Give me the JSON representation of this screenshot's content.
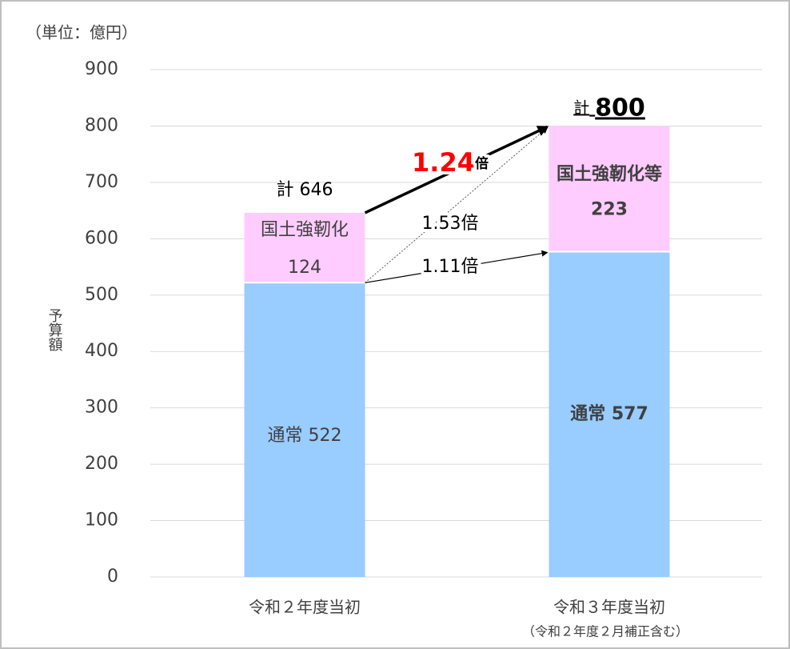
{
  "chart_data": {
    "type": "stacked_bar",
    "unit_label": "（単位：億円）",
    "ylabel": "予算額",
    "categories": [
      "令和２年度当初",
      "令和３年度当初"
    ],
    "category_notes": [
      null,
      "（令和２年度２月補正含む）"
    ],
    "series": [
      {
        "color": "#99ccff",
        "values": [
          522,
          577
        ],
        "value_labels": [
          "通常 522",
          "通常 577"
        ]
      },
      {
        "color": "#ffccff",
        "labels": [
          "国土強靭化",
          "国土強靭化等"
        ],
        "values": [
          124,
          223
        ]
      }
    ],
    "totals": {
      "label": "計",
      "values": [
        646,
        800
      ]
    },
    "ratios": [
      {
        "value": 1.24,
        "unit": "倍",
        "color": "#ff0000"
      },
      {
        "value": 1.53,
        "unit": "倍"
      },
      {
        "value": 1.11,
        "unit": "倍"
      }
    ],
    "ylim": [
      0,
      900
    ],
    "yticks": [
      0,
      100,
      200,
      300,
      400,
      500,
      600,
      700,
      800,
      900
    ],
    "grid": true
  }
}
